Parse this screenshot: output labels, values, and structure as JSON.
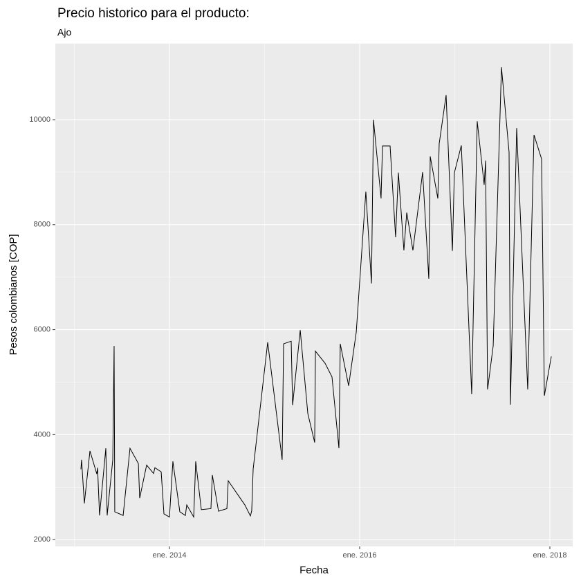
{
  "chart_data": {
    "type": "line",
    "title": "Precio historico para el producto:",
    "subtitle": "Ajo",
    "x_label": "Fecha",
    "y_label": "Pesos colombianos [COP]",
    "color": "#000000",
    "grid": true,
    "xlim": [
      2012.8,
      2018.24
    ],
    "xticks": [
      {
        "value": 2014,
        "label": "ene. 2014"
      },
      {
        "value": 2016,
        "label": "ene. 2016"
      },
      {
        "value": 2018,
        "label": "ene. 2018"
      }
    ],
    "ylim": [
      1870,
      11450
    ],
    "yticks": [
      2000,
      4000,
      6000,
      8000,
      10000
    ],
    "x": [
      2013.069,
      2013.076,
      2013.105,
      2013.164,
      2013.236,
      2013.244,
      2013.265,
      2013.331,
      2013.345,
      2013.404,
      2013.418,
      2013.425,
      2013.513,
      2013.585,
      2013.673,
      2013.687,
      2013.76,
      2013.833,
      2013.847,
      2013.913,
      2013.942,
      2014.0,
      2014.036,
      2014.109,
      2014.167,
      2014.182,
      2014.255,
      2014.276,
      2014.335,
      2014.436,
      2014.451,
      2014.516,
      2014.604,
      2014.618,
      2014.793,
      2014.851,
      2014.865,
      2014.88,
      2015.033,
      2015.185,
      2015.2,
      2015.28,
      2015.295,
      2015.375,
      2015.455,
      2015.527,
      2015.535,
      2015.636,
      2015.709,
      2015.782,
      2015.796,
      2015.884,
      2015.964,
      2016.065,
      2016.124,
      2016.145,
      2016.225,
      2016.24,
      2016.32,
      2016.378,
      2016.407,
      2016.465,
      2016.495,
      2016.56,
      2016.662,
      2016.727,
      2016.742,
      2016.822,
      2016.836,
      2016.909,
      2016.975,
      2016.996,
      2017.069,
      2017.178,
      2017.236,
      2017.309,
      2017.324,
      2017.345,
      2017.404,
      2017.491,
      2017.571,
      2017.585,
      2017.651,
      2017.767,
      2017.833,
      2017.913,
      2017.942,
      2018.015
    ],
    "values": [
      3340,
      3520,
      2690,
      3690,
      3250,
      3370,
      2460,
      3740,
      2460,
      3520,
      5690,
      2530,
      2460,
      3740,
      3450,
      2790,
      3420,
      3260,
      3370,
      3290,
      2490,
      2430,
      3490,
      2530,
      2460,
      2660,
      2430,
      3490,
      2570,
      2590,
      3230,
      2540,
      2590,
      3120,
      2660,
      2450,
      2550,
      3340,
      5760,
      3520,
      5730,
      5780,
      4560,
      5990,
      4400,
      3850,
      5590,
      5360,
      5100,
      3740,
      5730,
      4930,
      5950,
      8630,
      6880,
      10000,
      8500,
      9500,
      9500,
      7760,
      8990,
      7510,
      8230,
      7510,
      9000,
      6970,
      9300,
      8500,
      9540,
      10470,
      7500,
      8990,
      9510,
      4770,
      9970,
      8760,
      9220,
      4860,
      5690,
      11000,
      9380,
      4570,
      9840,
      4860,
      9710,
      9250,
      4740,
      5490
    ]
  }
}
